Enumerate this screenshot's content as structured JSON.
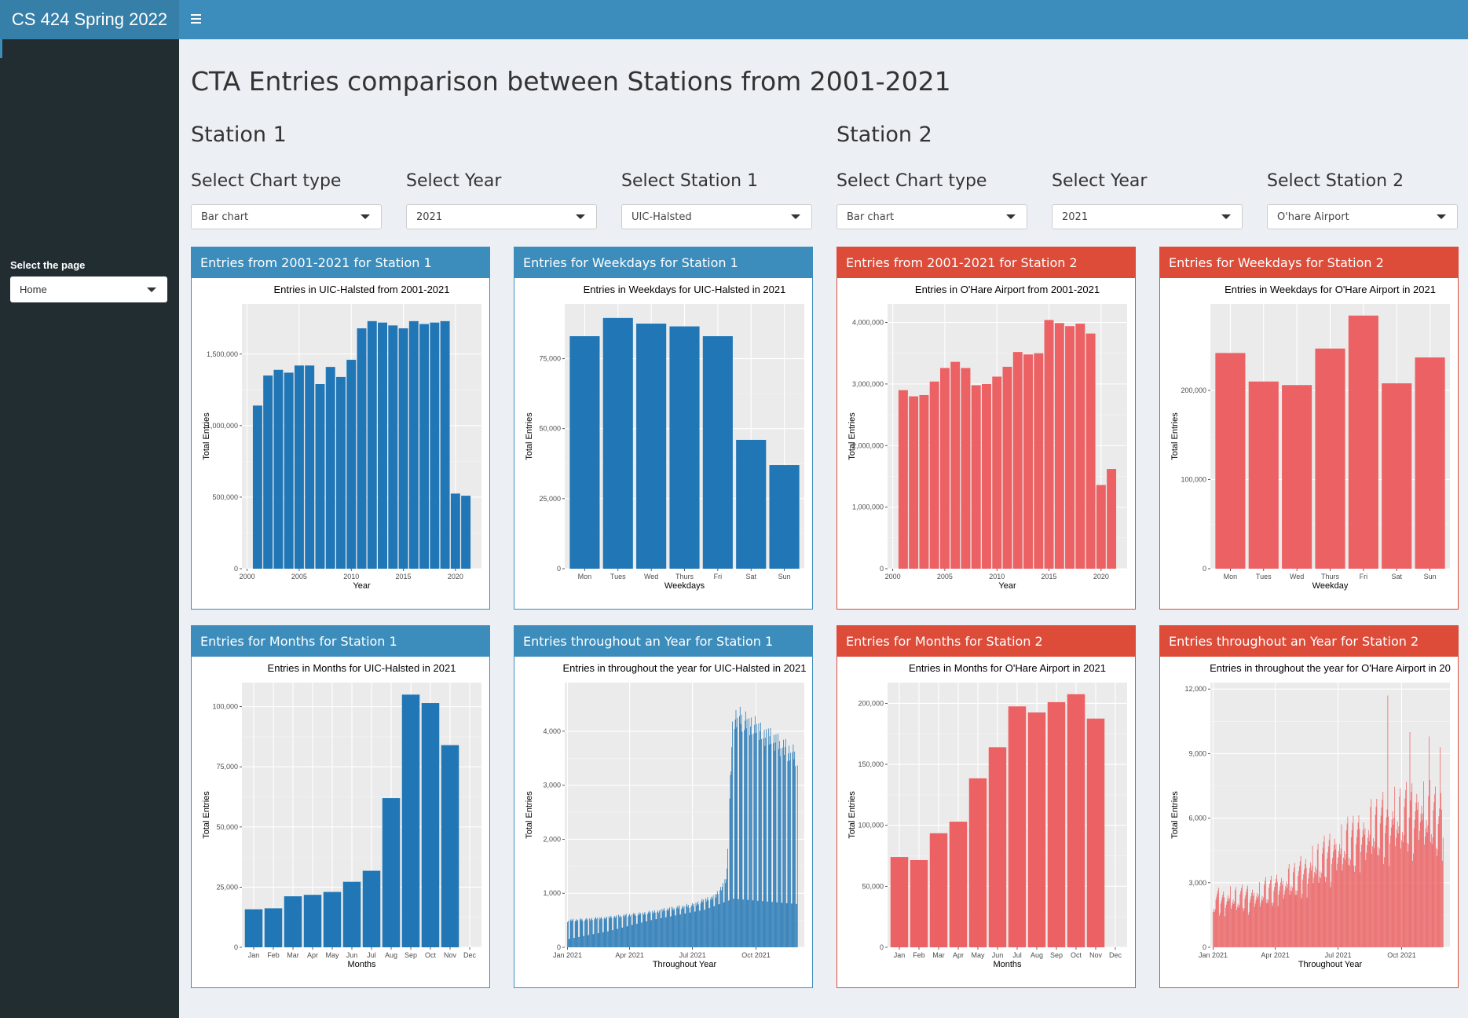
{
  "header": {
    "brand": "CS 424 Spring 2022",
    "toggle_icon": "hamburger-menu-icon"
  },
  "sidebar": {
    "page_label": "Select the page",
    "page_value": "Home"
  },
  "main": {
    "title": "CTA Entries comparison between Stations from 2001-2021",
    "station1": {
      "heading": "Station 1",
      "chart_type_label": "Select Chart type",
      "chart_type_value": "Bar chart",
      "year_label": "Select Year",
      "year_value": "2021",
      "station_label": "Select Station 1",
      "station_value": "UIC-Halsted"
    },
    "station2": {
      "heading": "Station 2",
      "chart_type_label": "Select Chart type",
      "chart_type_value": "Bar chart",
      "year_label": "Select Year",
      "year_value": "2021",
      "station_label": "Select Station 2",
      "station_value": "O'hare Airport"
    },
    "boxes": {
      "s1_yearly": "Entries from 2001-2021 for Station 1",
      "s1_weekdays": "Entries for Weekdays for Station 1",
      "s2_yearly": "Entries from 2001-2021 for Station 2",
      "s2_weekdays": "Entries for Weekdays for Station 2",
      "s1_months": "Entries for Months for Station 1",
      "s1_daily": "Entries throughout an Year for Station 1",
      "s2_months": "Entries for Months for Station 2",
      "s2_daily": "Entries throughout an Year for Station 2"
    }
  },
  "colors": {
    "blue": "#2176b5",
    "red": "#ec6163",
    "header_blue": "#3c8dbc",
    "header_red": "#dd4b39",
    "panel": "#ebebeb"
  },
  "chart_data": [
    {
      "id": "s1_yearly",
      "type": "bar",
      "color": "#2176b5",
      "title": "Entries in UIC-Halsted from 2001-2021",
      "xlabel": "Year",
      "ylabel": "Total Entries",
      "x": [
        2001,
        2002,
        2003,
        2004,
        2005,
        2006,
        2007,
        2008,
        2009,
        2010,
        2011,
        2012,
        2013,
        2014,
        2015,
        2016,
        2017,
        2018,
        2019,
        2020,
        2021
      ],
      "values": [
        1140000,
        1350000,
        1390000,
        1370000,
        1420000,
        1420000,
        1290000,
        1410000,
        1340000,
        1460000,
        1680000,
        1730000,
        1720000,
        1700000,
        1680000,
        1730000,
        1710000,
        1720000,
        1730000,
        525000,
        510000
      ],
      "xlim": [
        1999.5,
        2022.5
      ],
      "ylim": [
        0,
        1850000
      ],
      "xticks": [
        2000,
        2005,
        2010,
        2015,
        2020
      ],
      "xtick_labels": [
        "2000",
        "2005",
        "2010",
        "2015",
        "2020"
      ],
      "yticks": [
        0,
        500000,
        1000000,
        1500000
      ],
      "ytick_labels": [
        "0",
        "500,000",
        "1,000,000",
        "1,500,000"
      ]
    },
    {
      "id": "s1_weekdays",
      "type": "bar",
      "color": "#2176b5",
      "title": "Entries in Weekdays for UIC-Halsted in 2021",
      "xlabel": "Weekdays",
      "ylabel": "Total Entries",
      "categories": [
        "Mon",
        "Tues",
        "Wed",
        "Thurs",
        "Fri",
        "Sat",
        "Sun"
      ],
      "values": [
        83000,
        89500,
        87500,
        86500,
        83000,
        46000,
        37000
      ],
      "ylim": [
        0,
        94500
      ],
      "yticks": [
        0,
        25000,
        50000,
        75000
      ],
      "ytick_labels": [
        "0",
        "25,000",
        "50,000",
        "75,000"
      ]
    },
    {
      "id": "s2_yearly",
      "type": "bar",
      "color": "#ec6163",
      "title": "Entries in O'Hare Airport from 2001-2021",
      "xlabel": "Year",
      "ylabel": "Total Entries",
      "x": [
        2001,
        2002,
        2003,
        2004,
        2005,
        2006,
        2007,
        2008,
        2009,
        2010,
        2011,
        2012,
        2013,
        2014,
        2015,
        2016,
        2017,
        2018,
        2019,
        2020,
        2021
      ],
      "values": [
        2900000,
        2800000,
        2820000,
        3040000,
        3260000,
        3360000,
        3260000,
        2980000,
        3000000,
        3120000,
        3280000,
        3520000,
        3480000,
        3500000,
        4040000,
        3990000,
        3940000,
        3980000,
        3820000,
        1360000,
        1620000
      ],
      "xlim": [
        1999.5,
        2022.5
      ],
      "ylim": [
        0,
        4300000
      ],
      "xticks": [
        2000,
        2005,
        2010,
        2015,
        2020
      ],
      "xtick_labels": [
        "2000",
        "2005",
        "2010",
        "2015",
        "2020"
      ],
      "yticks": [
        0,
        1000000,
        2000000,
        3000000,
        4000000
      ],
      "ytick_labels": [
        "0",
        "1,000,000",
        "2,000,000",
        "3,000,000",
        "4,000,000"
      ]
    },
    {
      "id": "s2_weekdays",
      "type": "bar",
      "color": "#ec6163",
      "title": "Entries in Weekdays for O'Hare Airport in 2021",
      "xlabel": "Weekday",
      "ylabel": "Total Entries",
      "categories": [
        "Mon",
        "Tues",
        "Wed",
        "Thurs",
        "Fri",
        "Sat",
        "Sun"
      ],
      "values": [
        242000,
        210000,
        206000,
        247000,
        284000,
        208000,
        237000
      ],
      "ylim": [
        0,
        297000
      ],
      "yticks": [
        0,
        100000,
        200000
      ],
      "ytick_labels": [
        "0",
        "100,000",
        "200,000"
      ]
    },
    {
      "id": "s1_months",
      "type": "bar",
      "color": "#2176b5",
      "title": "Entries in Months for UIC-Halsted in 2021",
      "xlabel": "Months",
      "ylabel": "Total Entries",
      "categories": [
        "Jan",
        "Feb",
        "Mar",
        "Apr",
        "May",
        "Jun",
        "Jul",
        "Aug",
        "Sep",
        "Oct",
        "Nov",
        "Dec"
      ],
      "values": [
        15800,
        16200,
        21200,
        21800,
        23000,
        27200,
        31800,
        62000,
        105000,
        101500,
        84000,
        null
      ],
      "ylim": [
        0,
        110000
      ],
      "yticks": [
        0,
        25000,
        50000,
        75000,
        100000
      ],
      "ytick_labels": [
        "0",
        "25,000",
        "50,000",
        "75,000",
        "100,000"
      ]
    },
    {
      "id": "s1_daily",
      "type": "bar",
      "color": "#2176b5",
      "title": "Entries in throughout the year for UIC-Halsted in 2021",
      "xlabel": "Throughout Year",
      "ylabel": "Total Entries",
      "x_start": "2021-01-01",
      "x_end": "2021-11-30",
      "xtick_labels": [
        "Jan 2021",
        "Apr 2021",
        "Jul 2021",
        "Oct 2021"
      ],
      "xtick_dates": [
        "2021-01-01",
        "2021-04-01",
        "2021-07-01",
        "2021-10-01"
      ],
      "ylim": [
        0,
        4900
      ],
      "yticks": [
        0,
        1000,
        2000,
        3000,
        4000
      ],
      "ytick_labels": [
        "0",
        "1,000",
        "2,000",
        "3,000",
        "4,000"
      ],
      "trend_days": [
        0,
        60,
        120,
        180,
        215,
        230,
        240,
        260,
        300,
        333
      ],
      "trend_values": [
        520,
        580,
        680,
        820,
        1000,
        1300,
        4500,
        4400,
        4000,
        3700
      ],
      "weekend_values": [
        150,
        300,
        500,
        700,
        900,
        800
      ]
    },
    {
      "id": "s2_months",
      "type": "bar",
      "color": "#ec6163",
      "title": "Entries in Months for O'Hare Airport in 2021",
      "xlabel": "Months",
      "ylabel": "Total Entries",
      "categories": [
        "Jan",
        "Feb",
        "Mar",
        "Apr",
        "May",
        "Jun",
        "Jul",
        "Aug",
        "Sep",
        "Oct",
        "Nov",
        "Dec"
      ],
      "values": [
        74000,
        71500,
        93500,
        103000,
        138500,
        164000,
        197500,
        192500,
        201000,
        207500,
        187500,
        null
      ],
      "ylim": [
        0,
        217000
      ],
      "yticks": [
        0,
        50000,
        100000,
        150000,
        200000
      ],
      "ytick_labels": [
        "0",
        "50,000",
        "100,000",
        "150,000",
        "200,000"
      ]
    },
    {
      "id": "s2_daily",
      "type": "bar",
      "color": "#ec6163",
      "title": "Entries in throughout the year for O'Hare Airport in 20",
      "xlabel": "Throughout Year",
      "ylabel": "Total Entries",
      "x_start": "2021-01-01",
      "x_end": "2021-11-30",
      "xtick_labels": [
        "Jan 2021",
        "Apr 2021",
        "Jul 2021",
        "Oct 2021"
      ],
      "xtick_dates": [
        "2021-01-01",
        "2021-04-01",
        "2021-07-01",
        "2021-10-01"
      ],
      "ylim": [
        0,
        12300
      ],
      "yticks": [
        0,
        3000,
        6000,
        9000,
        12000
      ],
      "ytick_labels": [
        "0",
        "3,000",
        "6,000",
        "9,000",
        "12,000"
      ],
      "trend_days": [
        0,
        60,
        120,
        180,
        240,
        300,
        333
      ],
      "trend_values": [
        2300,
        2500,
        3400,
        4800,
        6000,
        6700,
        6300
      ],
      "peak_days": [
        253,
        285,
        313,
        329
      ],
      "peak_values": [
        11700,
        10000,
        9800,
        9300
      ]
    }
  ]
}
